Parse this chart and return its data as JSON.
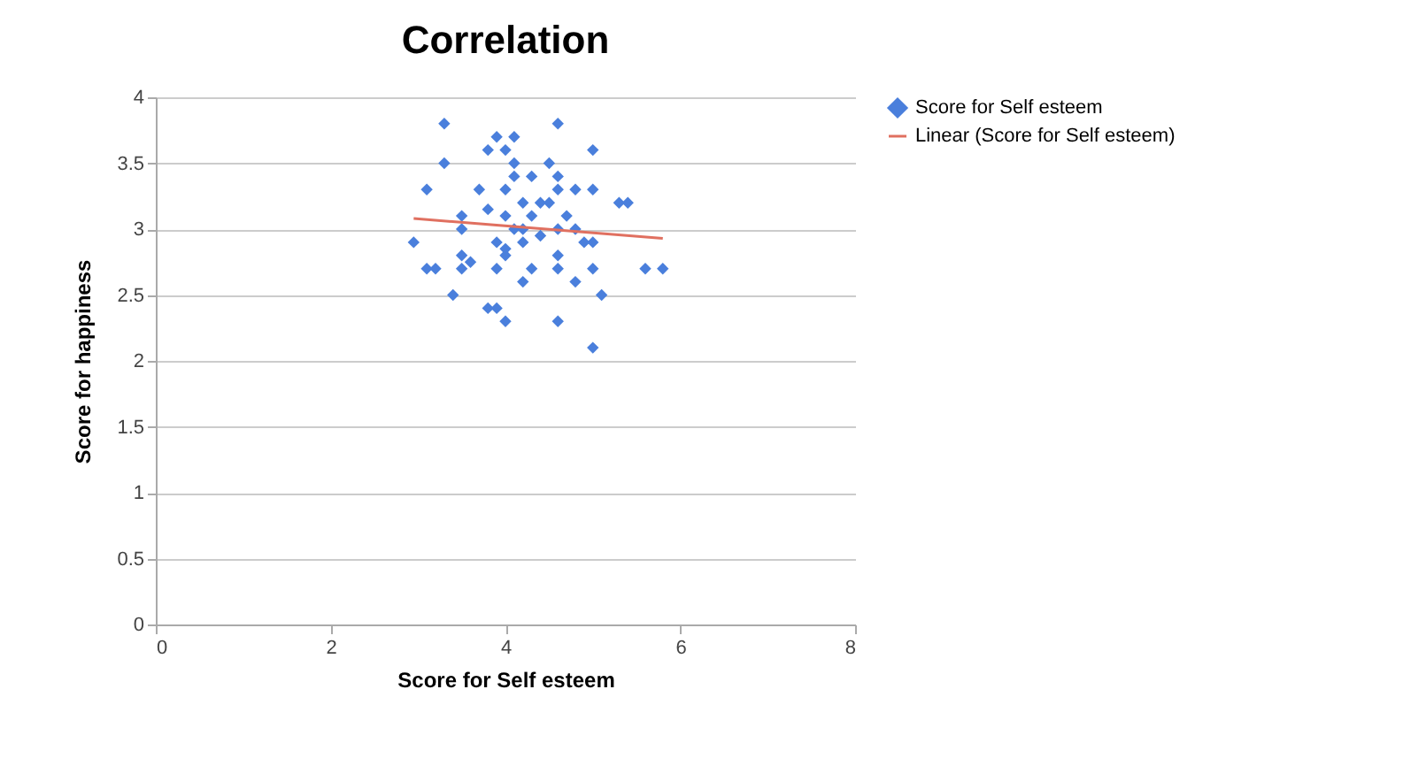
{
  "chart_data": {
    "type": "scatter",
    "title": "Correlation",
    "xlabel": "Score for Self esteem",
    "ylabel": "Score for happiness",
    "xlim": [
      0,
      8
    ],
    "xticks": [
      0,
      2,
      4,
      6,
      8
    ],
    "ylim": [
      0,
      4
    ],
    "yticks": [
      0,
      0.5,
      1,
      1.5,
      2,
      2.5,
      3,
      3.5,
      4
    ],
    "grid": "y",
    "legend": "right",
    "series": [
      {
        "name": "Score for Self esteem",
        "color": "#4a7fdc",
        "type": "scatter",
        "marker": "diamond",
        "x": [
          3.3,
          4.6,
          3.9,
          4.1,
          3.8,
          4.0,
          5.0,
          4.1,
          3.3,
          4.5,
          4.3,
          4.1,
          4.6,
          4.0,
          3.1,
          3.7,
          4.8,
          4.6,
          5.0,
          4.4,
          4.2,
          4.5,
          5.3,
          5.4,
          3.8,
          4.3,
          3.5,
          3.5,
          4.0,
          4.7,
          4.1,
          4.6,
          4.8,
          3.9,
          4.9,
          5.0,
          2.95,
          4.0,
          4.2,
          3.5,
          4.0,
          4.6,
          3.1,
          3.2,
          3.5,
          3.9,
          4.3,
          4.6,
          5.0,
          5.6,
          5.8,
          4.2,
          4.8,
          3.4,
          5.1,
          3.9,
          3.8,
          4.0,
          4.6,
          5.0,
          4.2,
          4.4,
          3.6
        ],
        "values": [
          3.8,
          3.8,
          3.7,
          3.7,
          3.6,
          3.6,
          3.6,
          3.5,
          3.5,
          3.5,
          3.4,
          3.4,
          3.4,
          3.3,
          3.3,
          3.3,
          3.3,
          3.3,
          3.3,
          3.2,
          3.2,
          3.2,
          3.2,
          3.2,
          3.15,
          3.1,
          3.1,
          3.0,
          3.1,
          3.1,
          3.0,
          3.0,
          3.0,
          2.9,
          2.9,
          2.9,
          2.9,
          2.85,
          2.9,
          2.8,
          2.8,
          2.8,
          2.7,
          2.7,
          2.7,
          2.7,
          2.7,
          2.7,
          2.7,
          2.7,
          2.7,
          2.6,
          2.6,
          2.5,
          2.5,
          2.4,
          2.4,
          2.3,
          2.3,
          2.1,
          3.0,
          2.95,
          2.75
        ]
      },
      {
        "name": "Linear (Score for Self esteem)",
        "color": "#e07060",
        "type": "line",
        "marker": "none",
        "x": [
          2.95,
          5.8
        ],
        "values": [
          3.08,
          2.93
        ]
      }
    ]
  }
}
